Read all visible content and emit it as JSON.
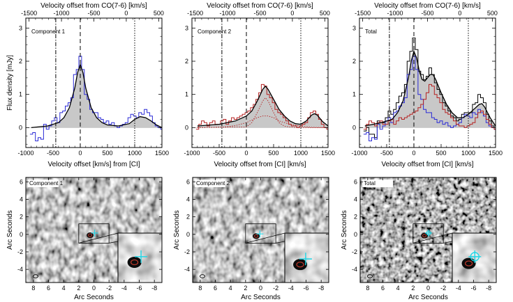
{
  "chart_data": [
    {
      "type": "line",
      "panel_label": "Component 1",
      "xlabel": "Velocity offset [km/s] from [CI]",
      "ylabel": "Flux density [mJy]",
      "top_xlabel": "Velocity offset from CO(7-6) [km/s]",
      "xlim": [
        -1000,
        1500
      ],
      "ylim": [
        -0.6,
        3.3
      ],
      "top_xlim": [
        -1550,
        550
      ],
      "xticks": [
        -1000,
        -500,
        0,
        500,
        1000,
        1500
      ],
      "yticks": [
        0,
        1,
        2,
        3
      ],
      "top_xticks": [
        -1500,
        -1000,
        -500,
        0,
        500
      ],
      "vlines": [
        {
          "x": -450,
          "style": "dash-dot"
        },
        {
          "x": 0,
          "style": "dashed"
        },
        {
          "x": 1000,
          "style": "dotted"
        }
      ],
      "series": [
        {
          "style": "histogram",
          "color": "#2b2bd6",
          "x": [
            -900,
            -850,
            -800,
            -750,
            -700,
            -650,
            -600,
            -550,
            -500,
            -450,
            -400,
            -350,
            -300,
            -250,
            -200,
            -150,
            -100,
            -50,
            0,
            50,
            100,
            150,
            200,
            250,
            300,
            350,
            400,
            450,
            500,
            550,
            600,
            650,
            700,
            750,
            800,
            850,
            900,
            950,
            1000,
            1050,
            1100,
            1150,
            1200,
            1250,
            1300,
            1350,
            1400,
            1450,
            1500
          ],
          "y": [
            -0.2,
            -0.15,
            -0.4,
            -0.3,
            -0.35,
            0.1,
            -0.05,
            0.05,
            0.2,
            0.3,
            0.15,
            0.45,
            0.5,
            0.65,
            0.75,
            0.9,
            1.6,
            1.75,
            2.15,
            1.75,
            1.0,
            0.85,
            0.55,
            0.45,
            0.45,
            0.3,
            0.25,
            0.15,
            0.2,
            0.1,
            0.15,
            0.05,
            0.0,
            0.05,
            0.1,
            0.15,
            0.3,
            0.4,
            0.35,
            0.3,
            0.45,
            0.4,
            0.55,
            0.45,
            0.35,
            0.15,
            0.05,
            0.0,
            -0.05
          ]
        },
        {
          "style": "fit",
          "color": "#000000",
          "x": [
            -900,
            -600,
            -400,
            -300,
            -200,
            -100,
            -50,
            0,
            50,
            100,
            200,
            300,
            400,
            500,
            700,
            900,
            1000,
            1100,
            1200,
            1300,
            1400,
            1500
          ],
          "y": [
            0.0,
            0.05,
            0.15,
            0.3,
            0.6,
            1.2,
            1.65,
            1.9,
            1.65,
            1.2,
            0.6,
            0.3,
            0.15,
            0.08,
            0.05,
            0.12,
            0.25,
            0.33,
            0.3,
            0.2,
            0.08,
            0.0
          ]
        }
      ]
    },
    {
      "type": "line",
      "panel_label": "Component 2",
      "xlabel": "Velocity offset from [CI] [km/s]",
      "ylabel": "",
      "top_xlabel": "Velocity offset from CO(7-6) [km/s]",
      "xlim": [
        -1000,
        1500
      ],
      "ylim": [
        -0.6,
        3.3
      ],
      "top_xlim": [
        -1550,
        550
      ],
      "xticks": [
        -1000,
        -500,
        0,
        500,
        1000,
        1500
      ],
      "yticks": [
        0,
        1,
        2,
        3
      ],
      "top_xticks": [
        -1500,
        -1000,
        -500,
        0,
        500
      ],
      "vlines": [
        {
          "x": -450,
          "style": "dash-dot"
        },
        {
          "x": 0,
          "style": "dashed"
        },
        {
          "x": 1000,
          "style": "dotted"
        }
      ],
      "series": [
        {
          "style": "histogram",
          "color": "#b52222",
          "x": [
            -900,
            -850,
            -800,
            -750,
            -700,
            -650,
            -600,
            -550,
            -500,
            -450,
            -400,
            -350,
            -300,
            -250,
            -200,
            -150,
            -100,
            -50,
            0,
            50,
            100,
            150,
            200,
            250,
            300,
            350,
            400,
            450,
            500,
            550,
            600,
            650,
            700,
            750,
            800,
            850,
            900,
            950,
            1000,
            1050,
            1100,
            1150,
            1200,
            1250,
            1300,
            1350,
            1400,
            1450,
            1500
          ],
          "y": [
            -0.05,
            0.1,
            0.2,
            0.15,
            0.05,
            0.15,
            0.2,
            0.1,
            0.1,
            0.2,
            0.25,
            0.1,
            0.2,
            0.3,
            0.25,
            0.3,
            0.35,
            0.4,
            0.45,
            0.5,
            0.6,
            0.7,
            0.85,
            1.05,
            1.3,
            1.25,
            1.0,
            0.9,
            0.75,
            0.55,
            0.45,
            0.4,
            0.3,
            0.2,
            0.1,
            0.05,
            0.05,
            0.0,
            0.05,
            0.1,
            0.15,
            0.3,
            0.45,
            0.5,
            0.4,
            0.25,
            0.1,
            0.0,
            -0.05
          ]
        },
        {
          "style": "fit",
          "color": "#000000",
          "x": [
            -900,
            -500,
            -200,
            0,
            100,
            200,
            300,
            350,
            400,
            500,
            600,
            700,
            800,
            900,
            1000,
            1100,
            1200,
            1250,
            1300,
            1400,
            1500
          ],
          "y": [
            0.05,
            0.1,
            0.2,
            0.35,
            0.5,
            0.8,
            1.15,
            1.25,
            1.15,
            0.85,
            0.55,
            0.35,
            0.2,
            0.12,
            0.1,
            0.2,
            0.38,
            0.42,
            0.38,
            0.18,
            0.05
          ]
        },
        {
          "style": "dotted-component",
          "color": "#b52222",
          "x": [
            -900,
            -400,
            -200,
            0,
            200,
            300,
            400,
            500,
            600,
            800,
            1000,
            1200,
            1500
          ],
          "y": [
            0.0,
            0.02,
            0.06,
            0.15,
            0.3,
            0.35,
            0.35,
            0.3,
            0.2,
            0.1,
            0.04,
            0.01,
            0.0
          ]
        },
        {
          "style": "dotted-component",
          "color": "#b52222",
          "x": [
            -900,
            0,
            100,
            200,
            300,
            350,
            400,
            500,
            600,
            700,
            900,
            1500
          ],
          "y": [
            0.0,
            0.02,
            0.15,
            0.45,
            0.8,
            0.9,
            0.8,
            0.45,
            0.15,
            0.04,
            0.0,
            0.0
          ]
        }
      ]
    },
    {
      "type": "line",
      "panel_label": "Total",
      "xlabel": "Velocity offset from [CI] [km/s]",
      "ylabel": "",
      "top_xlabel": "Velocity offset from CO(7-6) [km/s]",
      "xlim": [
        -1000,
        1500
      ],
      "ylim": [
        -0.6,
        3.3
      ],
      "top_xlim": [
        -1550,
        550
      ],
      "xticks": [
        -1000,
        -500,
        0,
        500,
        1000,
        1500
      ],
      "yticks": [
        0,
        1,
        2,
        3
      ],
      "top_xticks": [
        -1500,
        -1000,
        -500,
        0,
        500
      ],
      "vlines": [
        {
          "x": -450,
          "style": "dash-dot"
        },
        {
          "x": 0,
          "style": "dashed"
        },
        {
          "x": 1000,
          "style": "dotted"
        }
      ],
      "series": [
        {
          "style": "histogram",
          "color": "#000000",
          "x": [
            -900,
            -850,
            -800,
            -750,
            -700,
            -650,
            -600,
            -550,
            -500,
            -450,
            -400,
            -350,
            -300,
            -250,
            -200,
            -150,
            -100,
            -50,
            0,
            50,
            100,
            150,
            200,
            250,
            300,
            350,
            400,
            450,
            500,
            550,
            600,
            650,
            700,
            750,
            800,
            850,
            900,
            950,
            1000,
            1050,
            1100,
            1150,
            1200,
            1250,
            1300,
            1350,
            1400,
            1450,
            1500
          ],
          "y": [
            -0.1,
            0.0,
            -0.2,
            -0.2,
            -0.3,
            0.2,
            0.15,
            0.15,
            0.3,
            0.5,
            0.4,
            0.55,
            0.75,
            0.95,
            1.05,
            1.3,
            2.0,
            2.3,
            2.7,
            2.35,
            1.7,
            1.6,
            1.45,
            1.55,
            1.8,
            1.6,
            1.35,
            1.15,
            1.0,
            0.75,
            0.65,
            0.5,
            0.35,
            0.3,
            0.2,
            0.25,
            0.4,
            0.45,
            0.45,
            0.45,
            0.7,
            0.75,
            1.0,
            0.9,
            0.75,
            0.4,
            0.2,
            0.05,
            -0.05
          ]
        },
        {
          "style": "histogram",
          "color": "#2b2bd6",
          "x": [
            -900,
            -850,
            -800,
            -750,
            -700,
            -650,
            -600,
            -550,
            -500,
            -450,
            -400,
            -350,
            -300,
            -250,
            -200,
            -150,
            -100,
            -50,
            0,
            50,
            100,
            150,
            200,
            250,
            300,
            350,
            400,
            450,
            500,
            550,
            600,
            650,
            700,
            750,
            800,
            850,
            900,
            950,
            1000,
            1050,
            1100,
            1150,
            1200,
            1250,
            1300,
            1350,
            1400,
            1450,
            1500
          ],
          "y": [
            -0.2,
            -0.15,
            -0.4,
            -0.3,
            -0.35,
            0.1,
            -0.05,
            0.05,
            0.2,
            0.3,
            0.15,
            0.45,
            0.5,
            0.65,
            0.75,
            0.9,
            1.6,
            1.75,
            2.15,
            1.75,
            1.0,
            0.85,
            0.55,
            0.45,
            0.45,
            0.3,
            0.25,
            0.15,
            0.2,
            0.1,
            0.15,
            0.05,
            0.0,
            0.05,
            0.1,
            0.15,
            0.3,
            0.4,
            0.35,
            0.3,
            0.45,
            0.4,
            0.55,
            0.45,
            0.35,
            0.15,
            0.05,
            0.0,
            -0.05
          ]
        },
        {
          "style": "histogram",
          "color": "#b52222",
          "x": [
            -900,
            -850,
            -800,
            -750,
            -700,
            -650,
            -600,
            -550,
            -500,
            -450,
            -400,
            -350,
            -300,
            -250,
            -200,
            -150,
            -100,
            -50,
            0,
            50,
            100,
            150,
            200,
            250,
            300,
            350,
            400,
            450,
            500,
            550,
            600,
            650,
            700,
            750,
            800,
            850,
            900,
            950,
            1000,
            1050,
            1100,
            1150,
            1200,
            1250,
            1300,
            1350,
            1400,
            1450,
            1500
          ],
          "y": [
            -0.05,
            0.1,
            0.2,
            0.15,
            0.05,
            0.15,
            0.2,
            0.1,
            0.1,
            0.2,
            0.25,
            0.1,
            0.2,
            0.3,
            0.25,
            0.3,
            0.35,
            0.4,
            0.45,
            0.5,
            0.6,
            0.7,
            0.85,
            1.05,
            1.3,
            1.25,
            1.0,
            0.9,
            0.75,
            0.55,
            0.45,
            0.4,
            0.3,
            0.2,
            0.1,
            0.05,
            0.05,
            0.0,
            0.05,
            0.1,
            0.15,
            0.3,
            0.45,
            0.5,
            0.4,
            0.25,
            0.1,
            0.0,
            -0.05
          ]
        },
        {
          "style": "fit",
          "color": "#000000",
          "x": [
            -900,
            -600,
            -400,
            -300,
            -200,
            -100,
            -50,
            0,
            50,
            100,
            150,
            200,
            250,
            300,
            350,
            400,
            500,
            600,
            700,
            800,
            900,
            1000,
            1100,
            1200,
            1250,
            1300,
            1400,
            1500
          ],
          "y": [
            0.05,
            0.15,
            0.25,
            0.45,
            0.8,
            1.5,
            2.0,
            2.3,
            2.1,
            1.7,
            1.45,
            1.4,
            1.5,
            1.6,
            1.6,
            1.45,
            1.05,
            0.7,
            0.45,
            0.3,
            0.3,
            0.4,
            0.55,
            0.7,
            0.72,
            0.62,
            0.3,
            0.05
          ]
        }
      ]
    },
    {
      "type": "heatmap",
      "panel_label": "Component 1",
      "xlabel": "Arc Seconds",
      "ylabel": "Arc Seconds",
      "xlim": [
        9,
        -9
      ],
      "ylim": [
        -5.5,
        6.5
      ],
      "xticks": [
        8,
        6,
        4,
        2,
        0,
        -2,
        -4,
        -6,
        -8
      ],
      "yticks": [
        -4,
        -2,
        0,
        2,
        4,
        6
      ],
      "markers": [
        {
          "shape": "red-ellipse",
          "x": 0.5,
          "y": -0.1
        },
        {
          "shape": "cyan-cross",
          "x": -0.1,
          "y": 0.15
        }
      ],
      "zoom_box": {
        "x": [
          -2,
          2
        ],
        "y": [
          -1,
          1.2
        ]
      }
    },
    {
      "type": "heatmap",
      "panel_label": "Component 2",
      "xlabel": "Arc Seconds",
      "ylabel": "Arc Seconds",
      "xlim": [
        9,
        -9
      ],
      "ylim": [
        -5.5,
        6.5
      ],
      "xticks": [
        8,
        6,
        4,
        2,
        0,
        -2,
        -4,
        -6,
        -8
      ],
      "yticks": [
        -4,
        -2,
        0,
        2,
        4,
        6
      ],
      "markers": [
        {
          "shape": "red-ellipse",
          "x": 0.6,
          "y": -0.2
        },
        {
          "shape": "cyan-cross",
          "x": 0.1,
          "y": 0.05
        }
      ],
      "zoom_box": {
        "x": [
          -2,
          2
        ],
        "y": [
          -1,
          1.2
        ]
      }
    },
    {
      "type": "heatmap",
      "panel_label": "Total",
      "xlabel": "Arc Seconds",
      "ylabel": "Arc Seconds",
      "xlim": [
        9,
        -9
      ],
      "ylim": [
        -5.5,
        6.5
      ],
      "xticks": [
        8,
        6,
        4,
        2,
        0,
        -2,
        -4,
        -6,
        -8
      ],
      "yticks": [
        -4,
        -2,
        0,
        2,
        4,
        6
      ],
      "markers": [
        {
          "shape": "red-ellipse",
          "x": 0.5,
          "y": -0.15
        },
        {
          "shape": "cyan-circle-cross",
          "x": -0.05,
          "y": 0.15
        }
      ],
      "zoom_box": {
        "x": [
          -2,
          2
        ],
        "y": [
          -1,
          1.2
        ]
      }
    }
  ]
}
